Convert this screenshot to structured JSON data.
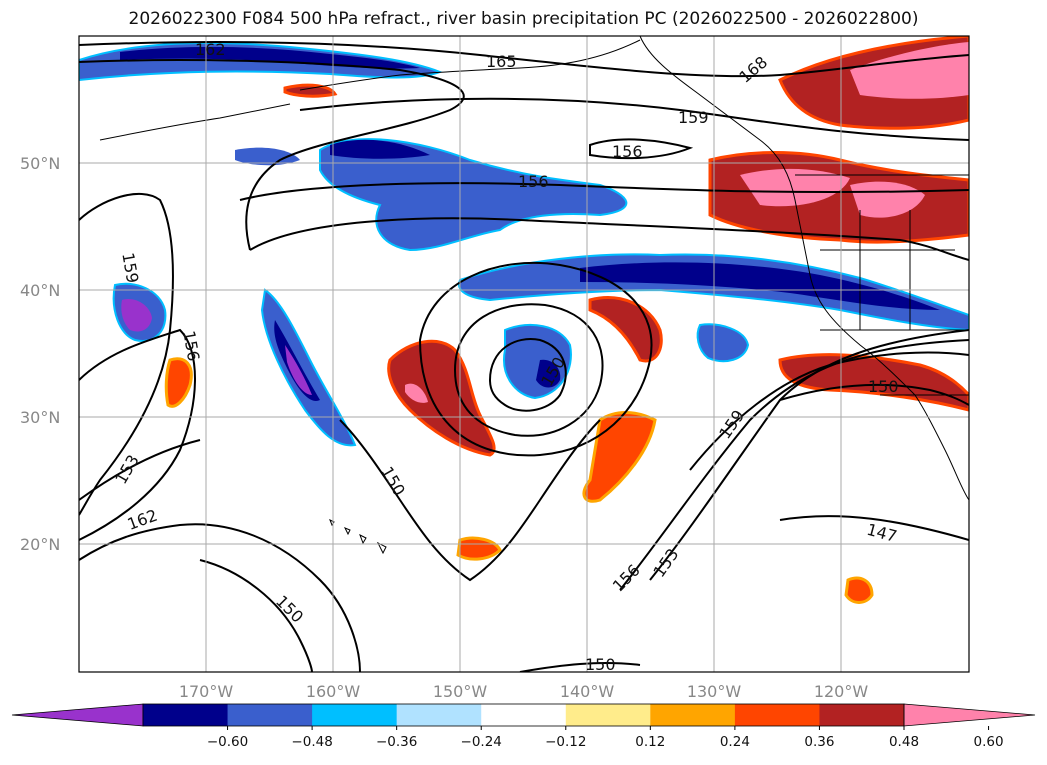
{
  "title": "2026022300 F084 500 hPa refract., river basin precipitation PC (2026022500 - 2026022800)",
  "lat_labels": [
    "50°N",
    "40°N",
    "30°N",
    "20°N"
  ],
  "lon_labels": [
    "170°W",
    "160°W",
    "150°W",
    "140°W",
    "130°W",
    "120°W"
  ],
  "colorbar": {
    "labels": [
      "−0.60",
      "−0.48",
      "−0.36",
      "−0.24",
      "−0.12",
      "0.12",
      "0.24",
      "0.36",
      "0.48",
      "0.60"
    ],
    "colors": [
      "#9932cc",
      "#00008b",
      "#3a5fcd",
      "#00bfff",
      "#b0e2ff",
      "#ffffff",
      "#ffec8b",
      "#ffa500",
      "#ff4500",
      "#b22222",
      "#ff82ab"
    ]
  },
  "contour_labels": [
    "162",
    "165",
    "168",
    "159",
    "156",
    "156",
    "159",
    "156",
    "153",
    "162",
    "150",
    "150",
    "150",
    "159",
    "156",
    "153",
    "150",
    "147",
    "150"
  ],
  "colors": {
    "strong_negative": "#00008b",
    "negative": "#3a5fcd",
    "weak_negative": "#00bfff",
    "weak_positive": "#ffa500",
    "positive": "#ff4500",
    "strong_positive": "#b22222",
    "max_positive": "#ff82ab"
  }
}
